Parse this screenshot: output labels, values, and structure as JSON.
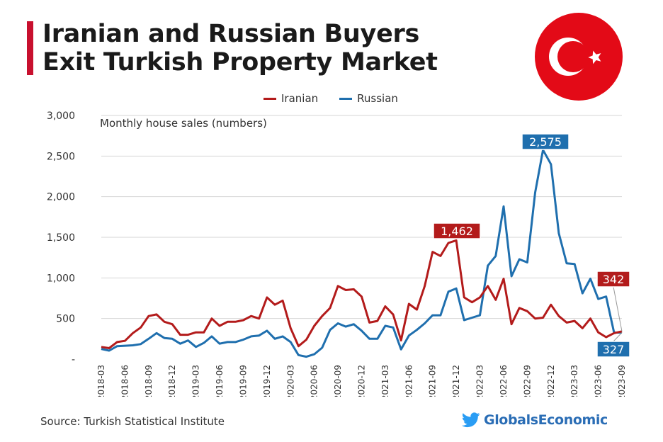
{
  "header": {
    "title_line1": "Iranian and Russian Buyers",
    "title_line2": "Exit Turkish Property Market",
    "flag_icon": "turkey-flag-icon"
  },
  "footer": {
    "source": "Source: Turkish Statistical Institute",
    "brand": "GlobalsEconomic",
    "brand_icon": "twitter-bird-icon"
  },
  "colors": {
    "iranian": "#b31b1b",
    "russian": "#1f6fae",
    "flag_red": "#e30a17",
    "accent": "#c8102e"
  },
  "chart_data": {
    "type": "line",
    "subtitle": "Monthly house sales (numbers)",
    "legend_position": "top-center",
    "grid": true,
    "ylim": [
      0,
      3000
    ],
    "y_ticks": [
      "3,000",
      "2,500",
      "2,000",
      "1,500",
      "1,000",
      "500",
      "-"
    ],
    "x_tick_labels": [
      "2018-03",
      "2018-06",
      "2018-09",
      "2018-12",
      "2019-03",
      "2019-06",
      "2019-09",
      "2019-12",
      "2020-03",
      "2020-06",
      "2020-09",
      "2020-12",
      "2021-03",
      "2021-06",
      "2021-09",
      "2021-12",
      "2022-03",
      "2022-06",
      "2022-09",
      "2022-12",
      "2023-03",
      "2023-06",
      "2023-09"
    ],
    "x": [
      "2018-03",
      "2018-04",
      "2018-05",
      "2018-06",
      "2018-07",
      "2018-08",
      "2018-09",
      "2018-10",
      "2018-11",
      "2018-12",
      "2019-01",
      "2019-02",
      "2019-03",
      "2019-04",
      "2019-05",
      "2019-06",
      "2019-07",
      "2019-08",
      "2019-09",
      "2019-10",
      "2019-11",
      "2019-12",
      "2020-01",
      "2020-02",
      "2020-03",
      "2020-04",
      "2020-05",
      "2020-06",
      "2020-07",
      "2020-08",
      "2020-09",
      "2020-10",
      "2020-11",
      "2020-12",
      "2021-01",
      "2021-02",
      "2021-03",
      "2021-04",
      "2021-05",
      "2021-06",
      "2021-07",
      "2021-08",
      "2021-09",
      "2021-10",
      "2021-11",
      "2021-12",
      "2022-01",
      "2022-02",
      "2022-03",
      "2022-04",
      "2022-05",
      "2022-06",
      "2022-07",
      "2022-08",
      "2022-09",
      "2022-10",
      "2022-11",
      "2022-12",
      "2023-01",
      "2023-02",
      "2023-03",
      "2023-04",
      "2023-05",
      "2023-06",
      "2023-07",
      "2023-08",
      "2023-09"
    ],
    "series": [
      {
        "name": "Iranian",
        "values": [
          150,
          135,
          210,
          225,
          320,
          390,
          530,
          550,
          460,
          430,
          300,
          300,
          330,
          330,
          500,
          410,
          460,
          460,
          480,
          530,
          500,
          760,
          670,
          720,
          380,
          160,
          240,
          410,
          530,
          630,
          900,
          850,
          860,
          770,
          450,
          470,
          650,
          550,
          230,
          680,
          610,
          900,
          1320,
          1270,
          1430,
          1462,
          760,
          700,
          760,
          900,
          730,
          990,
          430,
          630,
          590,
          500,
          510,
          670,
          530,
          450,
          470,
          380,
          500,
          330,
          270,
          320,
          342
        ]
      },
      {
        "name": "Russian",
        "values": [
          125,
          105,
          160,
          165,
          170,
          185,
          250,
          320,
          260,
          250,
          190,
          230,
          150,
          200,
          280,
          190,
          210,
          210,
          240,
          280,
          290,
          350,
          250,
          280,
          210,
          50,
          30,
          60,
          140,
          360,
          440,
          400,
          430,
          350,
          250,
          250,
          410,
          390,
          120,
          290,
          360,
          440,
          540,
          540,
          830,
          870,
          480,
          510,
          540,
          1150,
          1270,
          1880,
          1020,
          1230,
          1190,
          2050,
          2575,
          2400,
          1550,
          1180,
          1170,
          810,
          990,
          740,
          770,
          327,
          327
        ]
      }
    ],
    "callouts": [
      {
        "series": "Iranian",
        "x": "2021-12",
        "label": "1,462"
      },
      {
        "series": "Russian",
        "x": "2022-11",
        "label": "2,575"
      },
      {
        "series": "Iranian",
        "x": "2023-09",
        "label": "342"
      },
      {
        "series": "Russian",
        "x": "2023-09",
        "label": "327"
      }
    ]
  }
}
